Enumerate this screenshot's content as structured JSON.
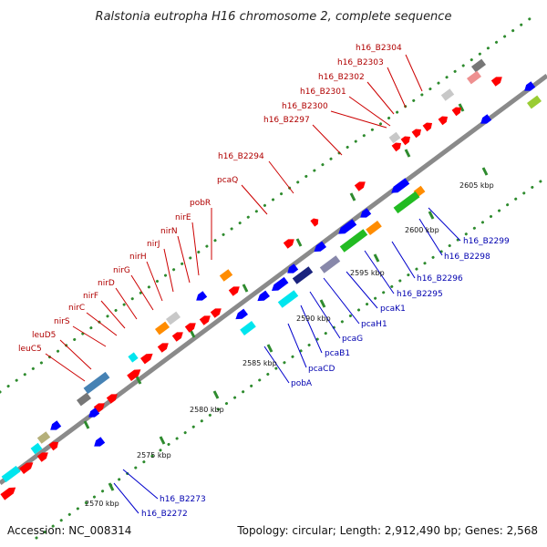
{
  "title": "Ralstonia eutropha H16 chromosome 2, complete sequence",
  "footer": {
    "accession": "Accession: NC_008314",
    "summary": "Topology: circular; Length: 2,912,490 bp; Genes: 2,568"
  },
  "colors": {
    "backbone": "#8a8a8a",
    "tick": "#2e8b2e",
    "upper_label": "#cc0000",
    "lower_label": "#0000cc"
  },
  "ticks": [
    "2570 kbp",
    "2575 kbp",
    "2580 kbp",
    "2585 kbp",
    "2590 kbp",
    "2595 kbp",
    "2600 kbp",
    "2605 kbp"
  ],
  "upper_labels": [
    "h16_B2304",
    "h16_B2303",
    "h16_B2302",
    "h16_B2301",
    "h16_B2300",
    "h16_B2297",
    "h16_B2294",
    "pcaQ",
    "pobR",
    "nirE",
    "nirN",
    "nirJ",
    "nirH",
    "nirG",
    "nirD",
    "nirF",
    "nirC",
    "nirS",
    "leuD5",
    "leuC5"
  ],
  "lower_labels": [
    "h16_B2299",
    "h16_B2298",
    "h16_B2296",
    "h16_B2295",
    "pcaK1",
    "pcaH1",
    "pcaG",
    "pcaB1",
    "pcaCD",
    "pobA",
    "h16_B2273",
    "h16_B2272"
  ]
}
